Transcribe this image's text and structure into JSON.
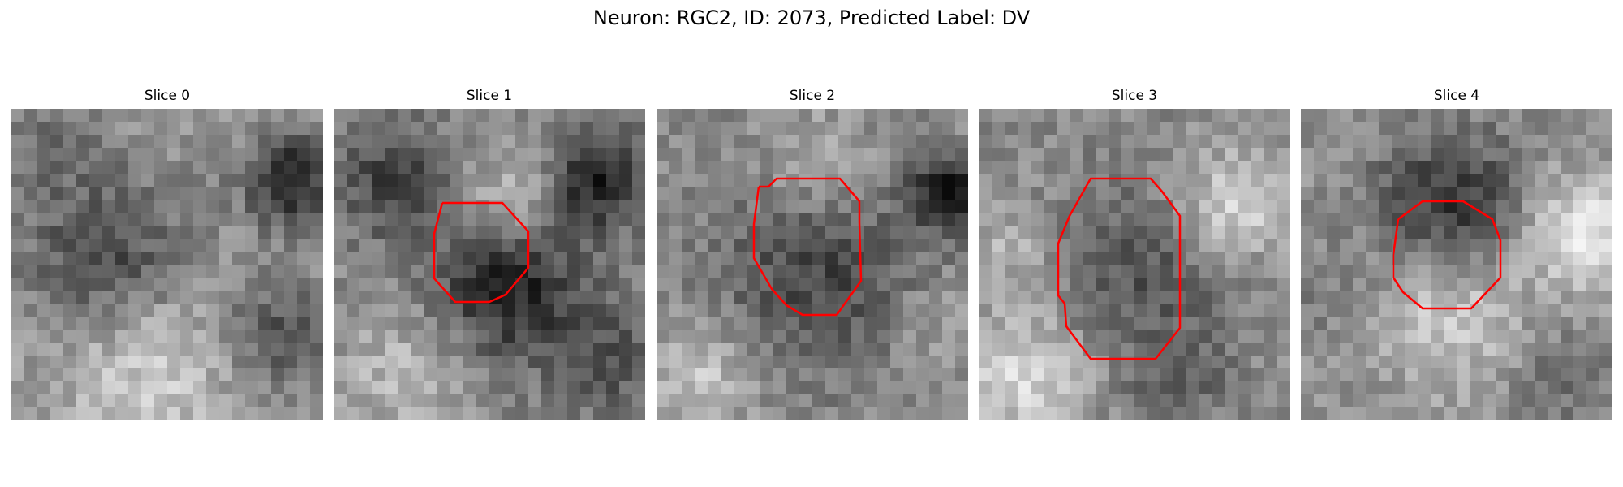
{
  "figure": {
    "title": "Neuron: RGC2, ID: 2073, Predicted Label: DV"
  },
  "panels": [
    {
      "title": "Slice 0",
      "has_outline": false
    },
    {
      "title": "Slice 1",
      "has_outline": true
    },
    {
      "title": "Slice 2",
      "has_outline": true
    },
    {
      "title": "Slice 3",
      "has_outline": true
    },
    {
      "title": "Slice 4",
      "has_outline": true
    }
  ],
  "colors": {
    "outline": "#ff0000",
    "background": "#ffffff"
  }
}
